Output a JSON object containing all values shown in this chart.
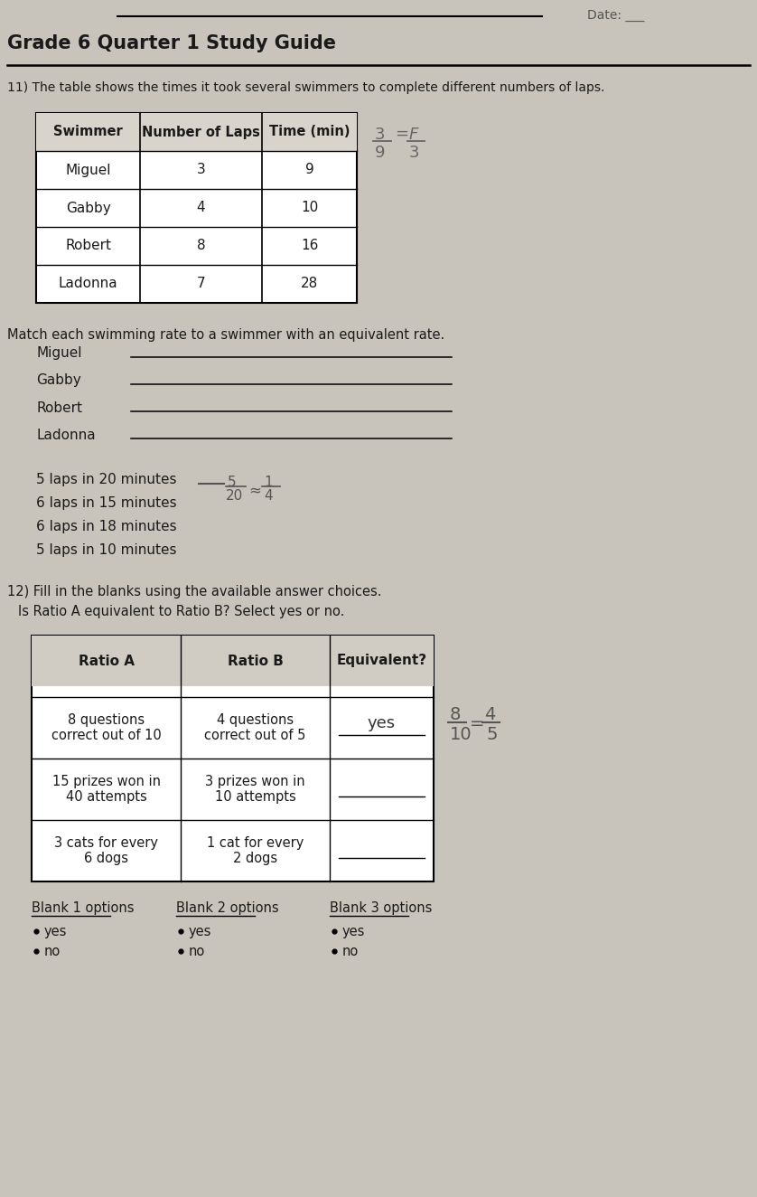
{
  "title": "Grade 6 Quarter 1 Study Guide",
  "bg_color": "#c8c4bc",
  "paper_color": "#dedad2",
  "q11_text": "11) The table shows the times it took several swimmers to complete different numbers of laps.",
  "table1_headers": [
    "Swimmer",
    "Number of Laps",
    "Time (min)"
  ],
  "table1_rows": [
    [
      "Miguel",
      "3",
      "9"
    ],
    [
      "Gabby",
      "4",
      "10"
    ],
    [
      "Robert",
      "8",
      "16"
    ],
    [
      "Ladonna",
      "7",
      "28"
    ]
  ],
  "match_instruction": "Match each swimming rate to a swimmer with an equivalent rate.",
  "match_names": [
    "Miguel",
    "Gabby",
    "Robert",
    "Ladonna"
  ],
  "match_rates": [
    "5 laps in 20 minutes",
    "6 laps in 15 minutes",
    "6 laps in 18 minutes",
    "5 laps in 10 minutes"
  ],
  "q12_text": "12) Fill in the blanks using the available answer choices.",
  "q12_sub": "Is Ratio A equivalent to Ratio B? Select yes or no.",
  "table2_headers": [
    "Ratio A",
    "Ratio B",
    "Equivalent?"
  ],
  "table2_row_a": [
    "8 questions\ncorrect out of 10",
    "4 questions\ncorrect out of 5"
  ],
  "table2_row_b": [
    "15 prizes won in\n40 attempts",
    "3 prizes won in\n10 attempts"
  ],
  "table2_row_c": [
    "3 cats for every\n6 dogs",
    "1 cat for every\n2 dogs"
  ],
  "blank1_label": "Blank 1 options",
  "blank2_label": "Blank 2 options",
  "blank3_label": "Blank 3 options",
  "blank_options": [
    "yes",
    "no"
  ],
  "text_color": "#1a1a1a"
}
